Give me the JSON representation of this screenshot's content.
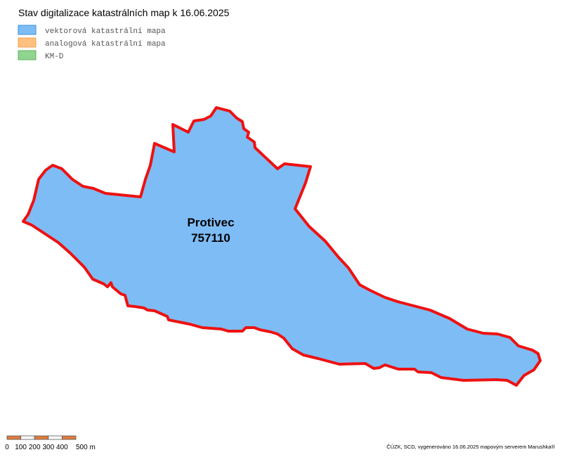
{
  "header": {
    "title": "Stav digitalizace katastrálních map k 16.06.2025"
  },
  "legend": {
    "items": [
      "vektorová katastrální mapa",
      "analogová katastrální mapa",
      "KM-D"
    ]
  },
  "region": {
    "name": "Protivec",
    "code": "757110"
  },
  "scale": {
    "labels": [
      "0",
      "100",
      "200",
      "300",
      "400",
      "500 m"
    ]
  },
  "footer": {
    "credit": "ČÚZK, SCD, vygenerováno 16.06.2025 mapovým serverem Marushka®"
  }
}
